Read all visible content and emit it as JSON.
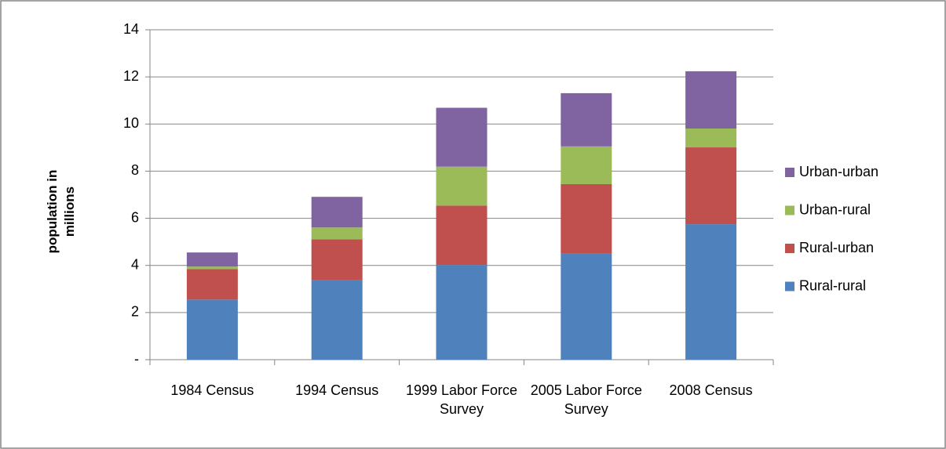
{
  "chart_data": {
    "type": "stacked-bar",
    "y_label": "population in millions",
    "categories": [
      "1984 Census",
      "1994 Census",
      "1999 Labor Force Survey",
      "2005 Labor Force Survey",
      "2008 Census"
    ],
    "series": [
      {
        "name": "Rural-rural",
        "color": "#4f81bd",
        "values": [
          2.55,
          3.39,
          4.02,
          4.52,
          5.75
        ]
      },
      {
        "name": "Rural-urban",
        "color": "#c0504d",
        "values": [
          1.3,
          1.72,
          2.52,
          2.93,
          3.26
        ]
      },
      {
        "name": "Urban-rural",
        "color": "#9bbb59",
        "values": [
          0.1,
          0.5,
          1.65,
          1.6,
          0.8
        ]
      },
      {
        "name": "Urban-urban",
        "color": "#8064a2",
        "values": [
          0.6,
          1.3,
          2.5,
          2.26,
          2.43
        ]
      }
    ],
    "ylim": [
      0,
      14
    ],
    "yticks": [
      {
        "value": 0,
        "label": "-"
      },
      2,
      4,
      6,
      8,
      10,
      12,
      14
    ],
    "grid": true,
    "legend": "right"
  }
}
